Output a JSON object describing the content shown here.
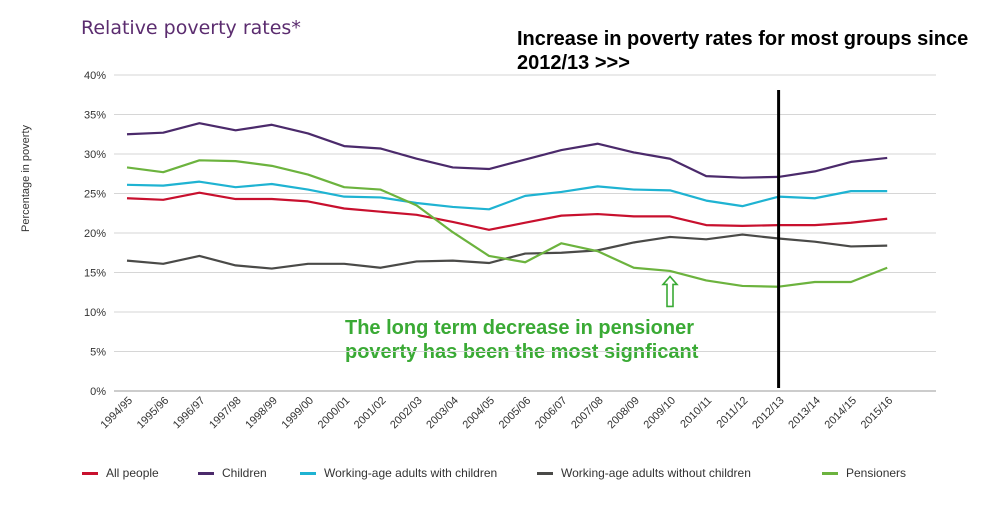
{
  "header": {
    "title": "Relative poverty rates*"
  },
  "annotations": {
    "top_note": "Increase in poverty rates for most groups since 2012/13 >>>",
    "pensioner_note": "The long term decrease in pensioner poverty has been the most signficant"
  },
  "chart_data": {
    "type": "line",
    "title": "Relative poverty rates*",
    "xlabel": "",
    "ylabel": "Percentage in poverty",
    "ylim": [
      0,
      40
    ],
    "ytick_step": 5,
    "ytick_suffix": "%",
    "grid": true,
    "legend_position": "bottom",
    "x": [
      "1994/95",
      "1995/96",
      "1996/97",
      "1997/98",
      "1998/99",
      "1999/00",
      "2000/01",
      "2001/02",
      "2002/03",
      "2003/04",
      "2004/05",
      "2005/06",
      "2006/07",
      "2007/08",
      "2008/09",
      "2009/10",
      "2010/11",
      "2011/12",
      "2012/13",
      "2013/14",
      "2014/15",
      "2015/16"
    ],
    "series": [
      {
        "name": "All people",
        "color": "#c8102e",
        "values": [
          24.4,
          24.2,
          25.1,
          24.3,
          24.3,
          24.0,
          23.1,
          22.7,
          22.3,
          21.4,
          20.4,
          21.3,
          22.2,
          22.4,
          22.1,
          22.1,
          21.0,
          20.9,
          21.0,
          21.0,
          21.3,
          21.8
        ]
      },
      {
        "name": "Children",
        "color": "#4b2a6b",
        "values": [
          32.5,
          32.7,
          33.9,
          33.0,
          33.7,
          32.6,
          31.0,
          30.7,
          29.4,
          28.3,
          28.1,
          29.3,
          30.5,
          31.3,
          30.2,
          29.4,
          27.2,
          27.0,
          27.1,
          27.8,
          29.0,
          29.5
        ]
      },
      {
        "name": "Working-age adults with children",
        "color": "#1fb3d2",
        "values": [
          26.1,
          26.0,
          26.5,
          25.8,
          26.2,
          25.5,
          24.6,
          24.5,
          23.8,
          23.3,
          23.0,
          24.7,
          25.2,
          25.9,
          25.5,
          25.4,
          24.1,
          23.4,
          24.6,
          24.4,
          25.3,
          25.3
        ]
      },
      {
        "name": "Working-age adults without children",
        "color": "#4a4a48",
        "values": [
          16.5,
          16.1,
          17.1,
          15.9,
          15.5,
          16.1,
          16.1,
          15.6,
          16.4,
          16.5,
          16.2,
          17.4,
          17.5,
          17.8,
          18.8,
          19.5,
          19.2,
          19.8,
          19.3,
          18.9,
          18.3,
          18.4
        ]
      },
      {
        "name": "Pensioners",
        "color": "#6cb33e",
        "values": [
          28.3,
          27.7,
          29.2,
          29.1,
          28.5,
          27.4,
          25.8,
          25.5,
          23.5,
          20.1,
          17.1,
          16.3,
          18.7,
          17.7,
          15.6,
          15.2,
          14.0,
          13.3,
          13.2,
          13.8,
          13.8,
          15.6
        ]
      }
    ],
    "markers": [
      {
        "type": "vertical_line",
        "at": "2012/13",
        "color": "#000000"
      },
      {
        "type": "arrow_up",
        "at": "2009/10",
        "value": 14.5,
        "color": "#3aaa35"
      }
    ]
  }
}
